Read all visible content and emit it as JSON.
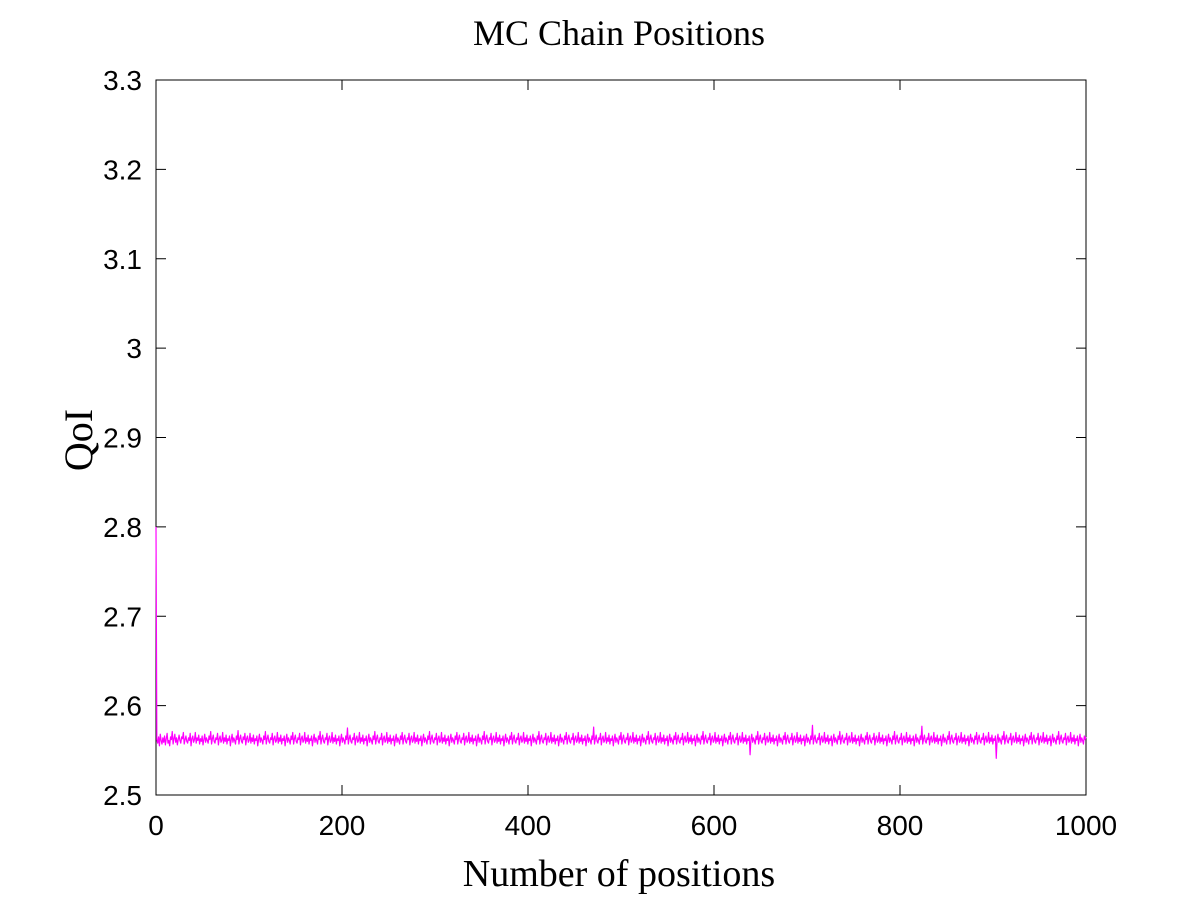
{
  "chart_data": {
    "type": "line",
    "title": "MC Chain Positions",
    "xlabel": "Number of positions",
    "ylabel": "QoI",
    "xlim": [
      0,
      1000
    ],
    "ylim": [
      2.5,
      3.3
    ],
    "x_ticks": [
      "0",
      "200",
      "400",
      "600",
      "800",
      "1000"
    ],
    "y_ticks": [
      "2.5",
      "2.6",
      "2.7",
      "2.8",
      "2.9",
      "3",
      "3.1",
      "3.2",
      "3.3"
    ],
    "grid": false,
    "legend": "none",
    "series": [
      {
        "color": "#ff00ff",
        "description_of_values": "MCMC trace: starts at 2.8 at position 1 then immediately drops and fluctuates around 2.562 (range about 2.54–2.58)",
        "values": [
          2.8,
          2.562,
          2.558,
          2.565,
          2.555,
          2.568,
          2.561,
          2.557,
          2.564,
          2.559,
          2.566,
          2.556,
          2.563,
          2.569,
          2.558,
          2.561,
          2.555,
          2.565,
          2.562,
          2.571,
          2.557,
          2.563,
          2.568,
          2.559,
          2.564,
          2.556,
          2.562,
          2.567,
          2.561,
          2.558,
          2.565,
          2.563,
          2.57,
          2.557,
          2.562,
          2.566,
          2.56,
          2.558,
          2.564,
          2.561,
          2.569,
          2.555,
          2.563,
          2.566,
          2.559,
          2.562,
          2.57,
          2.558,
          2.564,
          2.561,
          2.567,
          2.557,
          2.563,
          2.56,
          2.566,
          2.556,
          2.562,
          2.568,
          2.559,
          2.564,
          2.561,
          2.558,
          2.566,
          2.562,
          2.571,
          2.557,
          2.563,
          2.567,
          2.56,
          2.558,
          2.564,
          2.562,
          2.569,
          2.556,
          2.563,
          2.566,
          2.559,
          2.561,
          2.57,
          2.558,
          2.564,
          2.56,
          2.567,
          2.557,
          2.563,
          2.561,
          2.566,
          2.555,
          2.562,
          2.568,
          2.559,
          2.564,
          2.561,
          2.557,
          2.566,
          2.562,
          2.572,
          2.557,
          2.563,
          2.567,
          2.56,
          2.558,
          2.565,
          2.562,
          2.569,
          2.556,
          2.563,
          2.566,
          2.559,
          2.561,
          2.569,
          2.558,
          2.564,
          2.56,
          2.567,
          2.557,
          2.563,
          2.561,
          2.566,
          2.555,
          2.562,
          2.568,
          2.559,
          2.564,
          2.561,
          2.557,
          2.566,
          2.562,
          2.571,
          2.557,
          2.563,
          2.567,
          2.56,
          2.558,
          2.564,
          2.562,
          2.569,
          2.556,
          2.563,
          2.566,
          2.559,
          2.561,
          2.57,
          2.558,
          2.564,
          2.56,
          2.567,
          2.557,
          2.563,
          2.561,
          2.566,
          2.555,
          2.562,
          2.568,
          2.559,
          2.564,
          2.561,
          2.557,
          2.566,
          2.562,
          2.57,
          2.557,
          2.563,
          2.567,
          2.56,
          2.558,
          2.564,
          2.562,
          2.569,
          2.556,
          2.563,
          2.566,
          2.559,
          2.561,
          2.57,
          2.558,
          2.564,
          2.56,
          2.567,
          2.557,
          2.563,
          2.561,
          2.566,
          2.555,
          2.562,
          2.568,
          2.559,
          2.564,
          2.561,
          2.557,
          2.566,
          2.562,
          2.571,
          2.557,
          2.563,
          2.567,
          2.56,
          2.558,
          2.564,
          2.562,
          2.569,
          2.556,
          2.563,
          2.566,
          2.559,
          2.561,
          2.57,
          2.558,
          2.564,
          2.56,
          2.567,
          2.557,
          2.563,
          2.561,
          2.566,
          2.555,
          2.562,
          2.568,
          2.559,
          2.564,
          2.561,
          2.557,
          2.566,
          2.562,
          2.575,
          2.557,
          2.563,
          2.567,
          2.56,
          2.558,
          2.564,
          2.562,
          2.569,
          2.556,
          2.563,
          2.566,
          2.559,
          2.561,
          2.57,
          2.558,
          2.564,
          2.56,
          2.567,
          2.557,
          2.563,
          2.561,
          2.566,
          2.555,
          2.562,
          2.568,
          2.559,
          2.564,
          2.561,
          2.557,
          2.566,
          2.562,
          2.571,
          2.557,
          2.563,
          2.567,
          2.56,
          2.558,
          2.564,
          2.562,
          2.569,
          2.556,
          2.563,
          2.566,
          2.559,
          2.561,
          2.57,
          2.558,
          2.564,
          2.56,
          2.567,
          2.557,
          2.563,
          2.561,
          2.566,
          2.555,
          2.562,
          2.568,
          2.559,
          2.564,
          2.561,
          2.557,
          2.566,
          2.562,
          2.57,
          2.557,
          2.563,
          2.567,
          2.56,
          2.558,
          2.564,
          2.562,
          2.569,
          2.556,
          2.563,
          2.566,
          2.559,
          2.561,
          2.57,
          2.558,
          2.564,
          2.56,
          2.567,
          2.557,
          2.563,
          2.561,
          2.566,
          2.555,
          2.562,
          2.568,
          2.559,
          2.564,
          2.561,
          2.557,
          2.566,
          2.562,
          2.571,
          2.557,
          2.563,
          2.567,
          2.56,
          2.558,
          2.564,
          2.562,
          2.569,
          2.556,
          2.563,
          2.566,
          2.559,
          2.561,
          2.57,
          2.558,
          2.564,
          2.56,
          2.567,
          2.557,
          2.563,
          2.561,
          2.566,
          2.555,
          2.562,
          2.568,
          2.559,
          2.564,
          2.561,
          2.557,
          2.566,
          2.562,
          2.57,
          2.557,
          2.563,
          2.567,
          2.56,
          2.558,
          2.564,
          2.562,
          2.569,
          2.556,
          2.563,
          2.566,
          2.559,
          2.561,
          2.57,
          2.558,
          2.564,
          2.56,
          2.567,
          2.557,
          2.563,
          2.561,
          2.566,
          2.555,
          2.562,
          2.568,
          2.559,
          2.564,
          2.561,
          2.557,
          2.566,
          2.562,
          2.571,
          2.557,
          2.563,
          2.567,
          2.56,
          2.558,
          2.564,
          2.562,
          2.569,
          2.556,
          2.563,
          2.566,
          2.559,
          2.561,
          2.57,
          2.558,
          2.564,
          2.56,
          2.567,
          2.557,
          2.563,
          2.561,
          2.566,
          2.555,
          2.562,
          2.568,
          2.559,
          2.564,
          2.561,
          2.557,
          2.566,
          2.562,
          2.57,
          2.557,
          2.563,
          2.567,
          2.56,
          2.558,
          2.564,
          2.562,
          2.569,
          2.556,
          2.563,
          2.566,
          2.559,
          2.561,
          2.57,
          2.558,
          2.564,
          2.56,
          2.567,
          2.557,
          2.563,
          2.561,
          2.566,
          2.555,
          2.562,
          2.568,
          2.559,
          2.564,
          2.561,
          2.557,
          2.566,
          2.562,
          2.571,
          2.557,
          2.563,
          2.567,
          2.56,
          2.558,
          2.564,
          2.562,
          2.569,
          2.556,
          2.563,
          2.566,
          2.559,
          2.561,
          2.57,
          2.558,
          2.564,
          2.56,
          2.567,
          2.557,
          2.563,
          2.561,
          2.566,
          2.555,
          2.562,
          2.568,
          2.559,
          2.564,
          2.561,
          2.557,
          2.566,
          2.562,
          2.57,
          2.557,
          2.563,
          2.567,
          2.56,
          2.558,
          2.564,
          2.562,
          2.569,
          2.556,
          2.563,
          2.566,
          2.559,
          2.561,
          2.57,
          2.558,
          2.564,
          2.56,
          2.567,
          2.557,
          2.563,
          2.561,
          2.566,
          2.555,
          2.562,
          2.568,
          2.559,
          2.564,
          2.561,
          2.557,
          2.566,
          2.562,
          2.576,
          2.557,
          2.563,
          2.567,
          2.56,
          2.558,
          2.564,
          2.562,
          2.569,
          2.556,
          2.563,
          2.566,
          2.559,
          2.561,
          2.57,
          2.558,
          2.564,
          2.56,
          2.567,
          2.557,
          2.563,
          2.561,
          2.566,
          2.555,
          2.562,
          2.568,
          2.559,
          2.564,
          2.561,
          2.557,
          2.566,
          2.562,
          2.57,
          2.557,
          2.563,
          2.567,
          2.56,
          2.558,
          2.564,
          2.562,
          2.569,
          2.556,
          2.563,
          2.566,
          2.559,
          2.561,
          2.57,
          2.558,
          2.564,
          2.56,
          2.567,
          2.557,
          2.563,
          2.561,
          2.566,
          2.555,
          2.562,
          2.568,
          2.559,
          2.564,
          2.561,
          2.557,
          2.566,
          2.562,
          2.571,
          2.557,
          2.563,
          2.567,
          2.56,
          2.558,
          2.564,
          2.562,
          2.569,
          2.556,
          2.563,
          2.566,
          2.559,
          2.561,
          2.57,
          2.558,
          2.564,
          2.56,
          2.567,
          2.557,
          2.563,
          2.561,
          2.566,
          2.555,
          2.562,
          2.568,
          2.559,
          2.564,
          2.561,
          2.557,
          2.566,
          2.562,
          2.57,
          2.557,
          2.563,
          2.567,
          2.56,
          2.558,
          2.564,
          2.562,
          2.569,
          2.556,
          2.563,
          2.566,
          2.559,
          2.561,
          2.57,
          2.558,
          2.564,
          2.56,
          2.567,
          2.557,
          2.563,
          2.561,
          2.566,
          2.555,
          2.562,
          2.568,
          2.559,
          2.564,
          2.561,
          2.557,
          2.566,
          2.562,
          2.571,
          2.557,
          2.563,
          2.567,
          2.56,
          2.558,
          2.564,
          2.562,
          2.569,
          2.556,
          2.563,
          2.566,
          2.559,
          2.561,
          2.57,
          2.558,
          2.564,
          2.56,
          2.567,
          2.557,
          2.563,
          2.561,
          2.566,
          2.555,
          2.562,
          2.568,
          2.559,
          2.564,
          2.561,
          2.557,
          2.566,
          2.562,
          2.57,
          2.557,
          2.563,
          2.567,
          2.56,
          2.558,
          2.564,
          2.562,
          2.569,
          2.556,
          2.563,
          2.566,
          2.559,
          2.561,
          2.57,
          2.558,
          2.564,
          2.56,
          2.567,
          2.557,
          2.563,
          2.561,
          2.566,
          2.545,
          2.562,
          2.568,
          2.559,
          2.564,
          2.561,
          2.557,
          2.566,
          2.562,
          2.571,
          2.557,
          2.563,
          2.567,
          2.56,
          2.558,
          2.564,
          2.562,
          2.569,
          2.556,
          2.563,
          2.566,
          2.559,
          2.561,
          2.57,
          2.558,
          2.564,
          2.56,
          2.567,
          2.557,
          2.563,
          2.561,
          2.566,
          2.555,
          2.562,
          2.568,
          2.559,
          2.564,
          2.561,
          2.557,
          2.566,
          2.562,
          2.57,
          2.557,
          2.563,
          2.567,
          2.56,
          2.558,
          2.564,
          2.562,
          2.569,
          2.556,
          2.563,
          2.566,
          2.559,
          2.561,
          2.57,
          2.558,
          2.564,
          2.56,
          2.567,
          2.557,
          2.563,
          2.561,
          2.566,
          2.555,
          2.562,
          2.568,
          2.559,
          2.564,
          2.561,
          2.557,
          2.566,
          2.562,
          2.578,
          2.557,
          2.563,
          2.567,
          2.56,
          2.558,
          2.564,
          2.562,
          2.569,
          2.556,
          2.563,
          2.566,
          2.559,
          2.561,
          2.57,
          2.558,
          2.564,
          2.56,
          2.567,
          2.557,
          2.563,
          2.561,
          2.566,
          2.555,
          2.562,
          2.568,
          2.559,
          2.564,
          2.561,
          2.557,
          2.566,
          2.562,
          2.571,
          2.557,
          2.563,
          2.567,
          2.56,
          2.558,
          2.564,
          2.562,
          2.569,
          2.556,
          2.563,
          2.566,
          2.559,
          2.561,
          2.57,
          2.558,
          2.564,
          2.56,
          2.567,
          2.557,
          2.563,
          2.561,
          2.566,
          2.555,
          2.562,
          2.568,
          2.559,
          2.564,
          2.561,
          2.557,
          2.566,
          2.562,
          2.57,
          2.557,
          2.563,
          2.567,
          2.56,
          2.558,
          2.564,
          2.562,
          2.569,
          2.556,
          2.563,
          2.566,
          2.559,
          2.561,
          2.57,
          2.558,
          2.564,
          2.56,
          2.567,
          2.557,
          2.563,
          2.561,
          2.566,
          2.555,
          2.562,
          2.568,
          2.559,
          2.564,
          2.561,
          2.557,
          2.566,
          2.562,
          2.571,
          2.557,
          2.563,
          2.567,
          2.56,
          2.558,
          2.564,
          2.562,
          2.569,
          2.556,
          2.563,
          2.566,
          2.559,
          2.561,
          2.57,
          2.558,
          2.564,
          2.56,
          2.567,
          2.557,
          2.563,
          2.561,
          2.566,
          2.555,
          2.562,
          2.568,
          2.559,
          2.564,
          2.561,
          2.557,
          2.566,
          2.562,
          2.577,
          2.557,
          2.563,
          2.567,
          2.56,
          2.558,
          2.564,
          2.562,
          2.569,
          2.556,
          2.563,
          2.566,
          2.559,
          2.561,
          2.57,
          2.558,
          2.564,
          2.56,
          2.567,
          2.557,
          2.563,
          2.561,
          2.566,
          2.555,
          2.562,
          2.568,
          2.559,
          2.564,
          2.561,
          2.557,
          2.566,
          2.562,
          2.571,
          2.557,
          2.563,
          2.567,
          2.56,
          2.558,
          2.564,
          2.562,
          2.569,
          2.556,
          2.563,
          2.566,
          2.559,
          2.561,
          2.57,
          2.558,
          2.564,
          2.56,
          2.567,
          2.557,
          2.563,
          2.561,
          2.566,
          2.555,
          2.562,
          2.568,
          2.559,
          2.564,
          2.561,
          2.557,
          2.566,
          2.562,
          2.57,
          2.557,
          2.563,
          2.567,
          2.56,
          2.558,
          2.564,
          2.562,
          2.569,
          2.556,
          2.563,
          2.566,
          2.559,
          2.561,
          2.57,
          2.558,
          2.564,
          2.56,
          2.567,
          2.557,
          2.563,
          2.561,
          2.566,
          2.541,
          2.562,
          2.568,
          2.559,
          2.564,
          2.561,
          2.557,
          2.566,
          2.562,
          2.571,
          2.557,
          2.563,
          2.567,
          2.56,
          2.558,
          2.564,
          2.562,
          2.569,
          2.556,
          2.563,
          2.566,
          2.559,
          2.561,
          2.57,
          2.558,
          2.564,
          2.56,
          2.567,
          2.557,
          2.563,
          2.561,
          2.566,
          2.555,
          2.562,
          2.568,
          2.559,
          2.564,
          2.561,
          2.557,
          2.566,
          2.562,
          2.57,
          2.557,
          2.563,
          2.567,
          2.56,
          2.558,
          2.564,
          2.562,
          2.569,
          2.556,
          2.563,
          2.566,
          2.559,
          2.561,
          2.57,
          2.558,
          2.564,
          2.56,
          2.567,
          2.557,
          2.563,
          2.561,
          2.566,
          2.555,
          2.562,
          2.568,
          2.559,
          2.564,
          2.561,
          2.557,
          2.566,
          2.562,
          2.571,
          2.557,
          2.563,
          2.567,
          2.56,
          2.558,
          2.564,
          2.562,
          2.569,
          2.556,
          2.563,
          2.566,
          2.559,
          2.561,
          2.57,
          2.558,
          2.564,
          2.56,
          2.567,
          2.557,
          2.563,
          2.561,
          2.566,
          2.555,
          2.562,
          2.568,
          2.559,
          2.564,
          2.561,
          2.557,
          2.566,
          2.562,
          2.565
        ]
      }
    ]
  }
}
